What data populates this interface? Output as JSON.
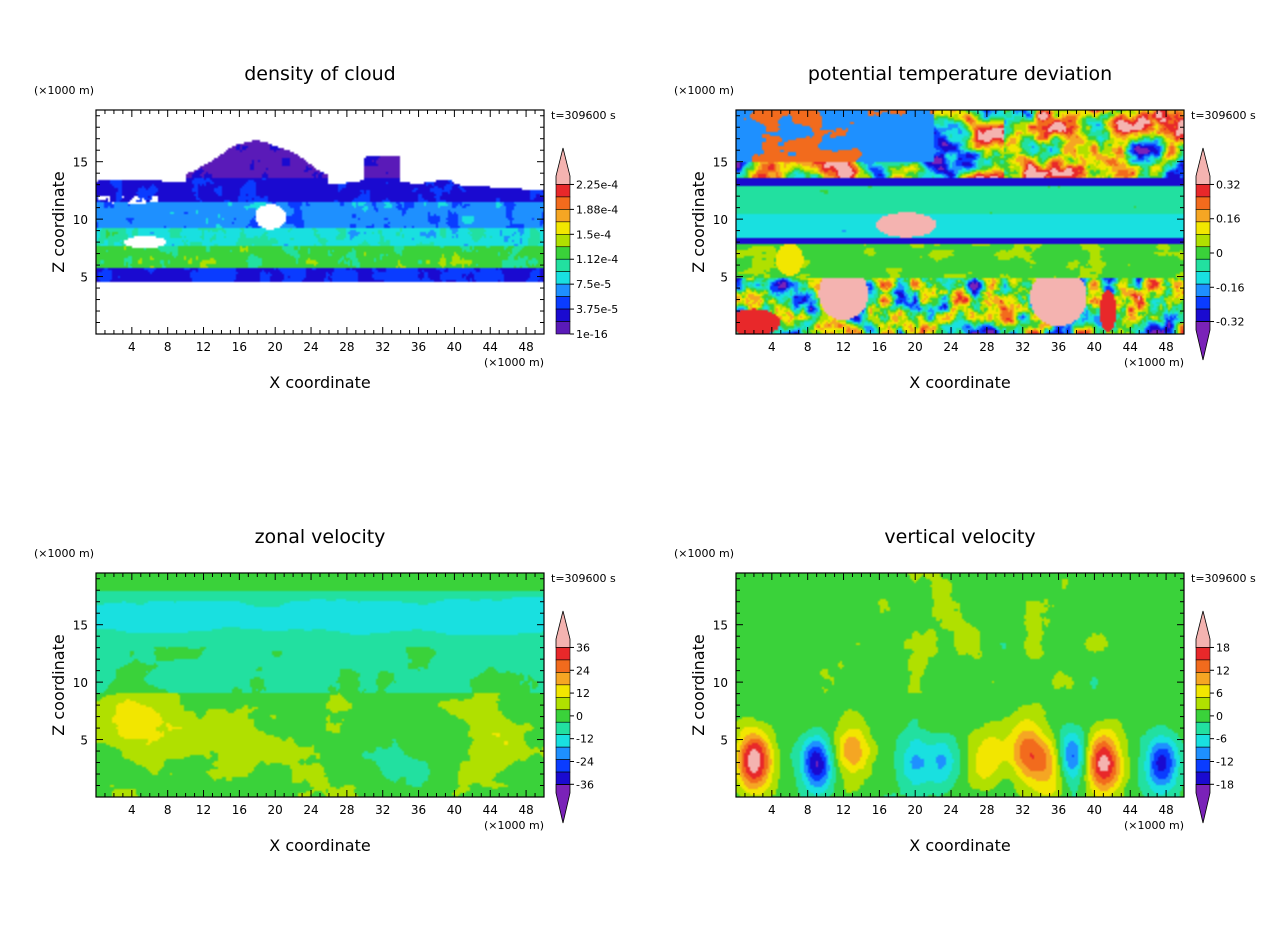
{
  "chart_data": [
    {
      "type": "heatmap",
      "title": "density of cloud",
      "time_label": "t=309600 s",
      "xlabel": "X coordinate",
      "ylabel": "Z coordinate",
      "x_unit": "(×1000 m)",
      "y_unit": "(×1000 m)",
      "xlim": [
        0,
        50
      ],
      "ylim": [
        0,
        19.5
      ],
      "xticks": [
        "4",
        "8",
        "12",
        "16",
        "20",
        "24",
        "28",
        "32",
        "36",
        "40",
        "44",
        "48"
      ],
      "yticks": [
        "5",
        "10",
        "15"
      ],
      "colorbar": {
        "labels": [
          "2.25e-4",
          "1.88e-4",
          "1.5e-4",
          "1.12e-4",
          "7.5e-5",
          "3.75e-5",
          "1e-16"
        ],
        "colors": [
          "#f4b3b0",
          "#e8282a",
          "#f26b1d",
          "#f5a623",
          "#f2e600",
          "#b0e000",
          "#3ad23a",
          "#22e0a0",
          "#19e0e0",
          "#1e90ff",
          "#0a3cff",
          "#1a0ad0",
          "#5a1ab8"
        ],
        "extend_low": false,
        "extend_high": true
      },
      "field": "cloud"
    },
    {
      "type": "heatmap",
      "title": "potential temperature deviation",
      "time_label": "t=309600 s",
      "xlabel": "X coordinate",
      "ylabel": "Z coordinate",
      "x_unit": "(×1000 m)",
      "y_unit": "(×1000 m)",
      "xlim": [
        0,
        50
      ],
      "ylim": [
        0,
        19.5
      ],
      "xticks": [
        "4",
        "8",
        "12",
        "16",
        "20",
        "24",
        "28",
        "32",
        "36",
        "40",
        "44",
        "48"
      ],
      "yticks": [
        "5",
        "10",
        "15"
      ],
      "colorbar": {
        "labels": [
          "0.32",
          "0.16",
          "0",
          "-0.16",
          "-0.32"
        ],
        "colors": [
          "#f4b3b0",
          "#e8282a",
          "#f26b1d",
          "#f5a623",
          "#f2e600",
          "#b0e000",
          "#3ad23a",
          "#22e0a0",
          "#19e0e0",
          "#1e90ff",
          "#0a3cff",
          "#1a0ad0",
          "#7a22b8"
        ],
        "extend_low": true,
        "extend_high": true
      },
      "field": "theta"
    },
    {
      "type": "heatmap",
      "title": "zonal velocity",
      "time_label": "t=309600 s",
      "xlabel": "X coordinate",
      "ylabel": "Z coordinate",
      "x_unit": "(×1000 m)",
      "y_unit": "(×1000 m)",
      "xlim": [
        0,
        50
      ],
      "ylim": [
        0,
        19.5
      ],
      "xticks": [
        "4",
        "8",
        "12",
        "16",
        "20",
        "24",
        "28",
        "32",
        "36",
        "40",
        "44",
        "48"
      ],
      "yticks": [
        "5",
        "10",
        "15"
      ],
      "colorbar": {
        "labels": [
          "36",
          "24",
          "12",
          "0",
          "-12",
          "-24",
          "-36"
        ],
        "colors": [
          "#f4b3b0",
          "#e8282a",
          "#f26b1d",
          "#f5a623",
          "#f2e600",
          "#b0e000",
          "#3ad23a",
          "#22e0a0",
          "#19e0e0",
          "#1e90ff",
          "#0a3cff",
          "#1a0ad0",
          "#7a22b8"
        ],
        "extend_low": true,
        "extend_high": true
      },
      "field": "u"
    },
    {
      "type": "heatmap",
      "title": "vertical velocity",
      "time_label": "t=309600 s",
      "xlabel": "X coordinate",
      "ylabel": "Z coordinate",
      "x_unit": "(×1000 m)",
      "y_unit": "(×1000 m)",
      "xlim": [
        0,
        50
      ],
      "ylim": [
        0,
        19.5
      ],
      "xticks": [
        "4",
        "8",
        "12",
        "16",
        "20",
        "24",
        "28",
        "32",
        "36",
        "40",
        "44",
        "48"
      ],
      "yticks": [
        "5",
        "10",
        "15"
      ],
      "colorbar": {
        "labels": [
          "18",
          "12",
          "6",
          "0",
          "-6",
          "-12",
          "-18"
        ],
        "colors": [
          "#f4b3b0",
          "#e8282a",
          "#f26b1d",
          "#f5a623",
          "#f2e600",
          "#b0e000",
          "#3ad23a",
          "#22e0a0",
          "#19e0e0",
          "#1e90ff",
          "#0a3cff",
          "#1a0ad0",
          "#7a22b8"
        ],
        "extend_low": true,
        "extend_high": true
      },
      "field": "w"
    }
  ]
}
